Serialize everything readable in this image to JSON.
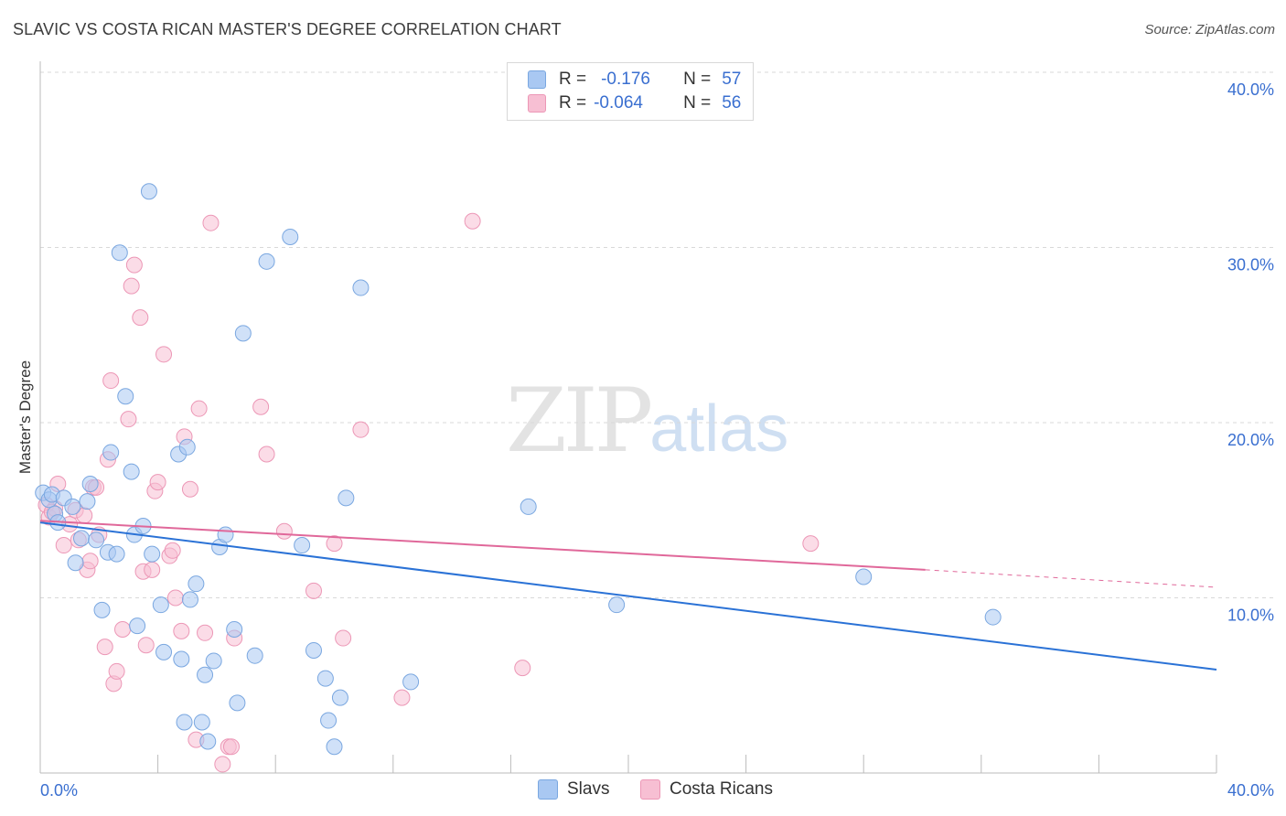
{
  "header": {
    "title": "SLAVIC VS COSTA RICAN MASTER'S DEGREE CORRELATION CHART",
    "source": "Source: ZipAtlas.com"
  },
  "watermark": {
    "zip": "ZIP",
    "atlas": "atlas"
  },
  "legend": {
    "rows": [
      {
        "label_r": "R = ",
        "r": "-0.176",
        "label_n": "N = ",
        "n": "57"
      },
      {
        "label_r": "R = ",
        "r": "-0.064",
        "label_n": "N = ",
        "n": "56"
      }
    ],
    "series": [
      "Slavs",
      "Costa Ricans"
    ]
  },
  "colors": {
    "slavs_fill": "#a9c8f2",
    "slavs_stroke": "#7aa7e0",
    "slavs_line": "#2a72d6",
    "cr_fill": "#f7bfd3",
    "cr_stroke": "#ec97b6",
    "cr_line": "#e0689a",
    "tick_text": "#3a6fd0",
    "grid": "#d9d9d9"
  },
  "chart_data": {
    "type": "scatter",
    "title": "SLAVIC VS COSTA RICAN MASTER'S DEGREE CORRELATION CHART",
    "xlabel": "",
    "ylabel": "Master's Degree",
    "xlim": [
      0,
      40
    ],
    "ylim": [
      0,
      40
    ],
    "x_tick_labels": [
      "0.0%",
      "40.0%"
    ],
    "y_ticks": [
      10,
      20,
      30,
      40
    ],
    "y_tick_labels": [
      "10.0%",
      "20.0%",
      "30.0%",
      "40.0%"
    ],
    "series": [
      {
        "name": "Slavs",
        "R": -0.176,
        "N": 57,
        "trend": {
          "x0": 0,
          "y0": 14.3,
          "x1": 40,
          "y1": 5.9
        },
        "points": [
          [
            0.1,
            16.0
          ],
          [
            0.3,
            15.6
          ],
          [
            0.4,
            15.9
          ],
          [
            0.5,
            14.8
          ],
          [
            0.6,
            14.3
          ],
          [
            0.8,
            15.7
          ],
          [
            1.1,
            15.2
          ],
          [
            1.2,
            12.0
          ],
          [
            1.4,
            13.4
          ],
          [
            1.6,
            15.5
          ],
          [
            1.7,
            16.5
          ],
          [
            1.9,
            13.3
          ],
          [
            2.1,
            9.3
          ],
          [
            2.3,
            12.6
          ],
          [
            2.4,
            18.3
          ],
          [
            2.6,
            12.5
          ],
          [
            2.7,
            29.7
          ],
          [
            2.9,
            21.5
          ],
          [
            3.1,
            17.2
          ],
          [
            3.2,
            13.6
          ],
          [
            3.3,
            8.4
          ],
          [
            3.5,
            14.1
          ],
          [
            3.7,
            33.2
          ],
          [
            3.8,
            12.5
          ],
          [
            4.1,
            9.6
          ],
          [
            4.2,
            6.9
          ],
          [
            4.7,
            18.2
          ],
          [
            4.8,
            6.5
          ],
          [
            4.9,
            2.9
          ],
          [
            5.0,
            18.6
          ],
          [
            5.1,
            9.9
          ],
          [
            5.3,
            10.8
          ],
          [
            5.5,
            2.9
          ],
          [
            5.6,
            5.6
          ],
          [
            5.7,
            1.8
          ],
          [
            5.9,
            6.4
          ],
          [
            6.1,
            12.9
          ],
          [
            6.3,
            13.6
          ],
          [
            6.6,
            8.2
          ],
          [
            6.7,
            4.0
          ],
          [
            6.9,
            25.1
          ],
          [
            7.3,
            6.7
          ],
          [
            7.7,
            29.2
          ],
          [
            8.5,
            30.6
          ],
          [
            8.9,
            13.0
          ],
          [
            9.3,
            7.0
          ],
          [
            9.7,
            5.4
          ],
          [
            9.8,
            3.0
          ],
          [
            10.0,
            1.5
          ],
          [
            10.2,
            4.3
          ],
          [
            10.4,
            15.7
          ],
          [
            10.9,
            27.7
          ],
          [
            12.6,
            5.2
          ],
          [
            16.6,
            15.2
          ],
          [
            19.6,
            9.6
          ],
          [
            28.0,
            11.2
          ],
          [
            32.4,
            8.9
          ]
        ]
      },
      {
        "name": "Costa Ricans",
        "R": -0.064,
        "N": 56,
        "trend": {
          "x0": 0,
          "y0": 14.4,
          "x1": 30.1,
          "y1": 11.6,
          "dash_to_x": 40,
          "dash_to_y": 10.6
        },
        "points": [
          [
            0.2,
            15.3
          ],
          [
            0.3,
            14.6
          ],
          [
            0.5,
            15.1
          ],
          [
            0.6,
            16.5
          ],
          [
            0.8,
            13.0
          ],
          [
            1.0,
            14.2
          ],
          [
            1.2,
            15.0
          ],
          [
            1.3,
            13.3
          ],
          [
            1.5,
            14.7
          ],
          [
            1.6,
            11.6
          ],
          [
            1.7,
            12.1
          ],
          [
            1.8,
            16.3
          ],
          [
            2.0,
            13.6
          ],
          [
            2.2,
            7.2
          ],
          [
            2.3,
            17.9
          ],
          [
            2.4,
            22.4
          ],
          [
            2.5,
            5.1
          ],
          [
            2.6,
            5.8
          ],
          [
            2.8,
            8.2
          ],
          [
            3.0,
            20.2
          ],
          [
            3.1,
            27.8
          ],
          [
            3.2,
            29.0
          ],
          [
            3.4,
            26.0
          ],
          [
            3.5,
            11.5
          ],
          [
            3.6,
            7.3
          ],
          [
            3.8,
            11.6
          ],
          [
            3.9,
            16.1
          ],
          [
            4.0,
            16.6
          ],
          [
            4.2,
            23.9
          ],
          [
            4.4,
            12.4
          ],
          [
            4.5,
            12.7
          ],
          [
            4.6,
            10.0
          ],
          [
            4.8,
            8.1
          ],
          [
            4.9,
            19.2
          ],
          [
            5.1,
            16.2
          ],
          [
            5.3,
            1.9
          ],
          [
            5.4,
            20.8
          ],
          [
            5.6,
            8.0
          ],
          [
            5.8,
            31.4
          ],
          [
            6.2,
            0.5
          ],
          [
            6.4,
            1.5
          ],
          [
            6.5,
            1.5
          ],
          [
            6.6,
            7.7
          ],
          [
            7.5,
            20.9
          ],
          [
            7.7,
            18.2
          ],
          [
            8.3,
            13.8
          ],
          [
            9.3,
            10.4
          ],
          [
            10.0,
            13.1
          ],
          [
            10.3,
            7.7
          ],
          [
            10.9,
            19.6
          ],
          [
            12.3,
            4.3
          ],
          [
            14.7,
            31.5
          ],
          [
            16.4,
            6.0
          ],
          [
            26.2,
            13.1
          ],
          [
            0.4,
            14.9
          ],
          [
            1.9,
            16.3
          ]
        ]
      }
    ]
  }
}
